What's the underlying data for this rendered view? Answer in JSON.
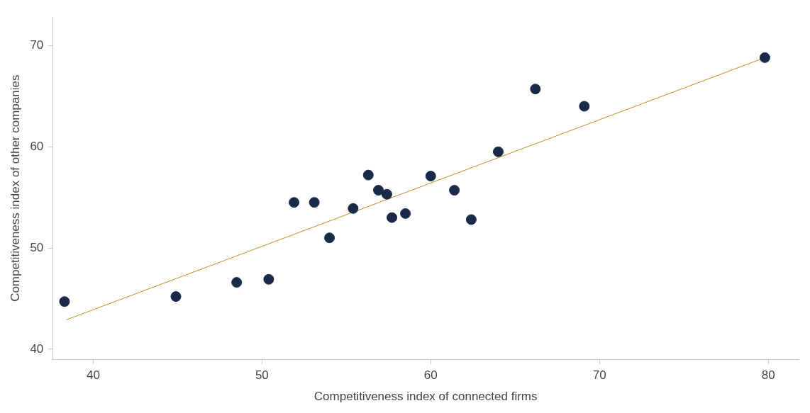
{
  "chart_data": {
    "type": "scatter",
    "xlabel": "Competitiveness index of connected firms",
    "ylabel": "Competitiveness index of other companies",
    "xlim": [
      37.6,
      81.8
    ],
    "xticks": [
      40,
      50,
      60,
      70,
      80
    ],
    "ylim": [
      39,
      72.8
    ],
    "yticks": [
      40,
      50,
      60,
      70
    ],
    "grid": false,
    "legend": false,
    "series": [
      {
        "marker": "circle",
        "color": "#1a2b4a",
        "x": [
          38.3,
          44.9,
          48.5,
          50.4,
          51.9,
          53.1,
          54.0,
          55.4,
          56.3,
          56.9,
          57.4,
          57.7,
          58.5,
          60.0,
          61.4,
          62.4,
          64.0,
          66.2,
          69.1,
          79.8
        ],
        "values": [
          44.7,
          45.2,
          46.6,
          46.9,
          54.5,
          54.5,
          51.0,
          53.9,
          57.2,
          55.7,
          55.3,
          53.0,
          53.4,
          57.1,
          55.7,
          52.8,
          59.5,
          65.7,
          64.0,
          68.8
        ]
      },
      {
        "type": "line",
        "color": "#c8891e",
        "x": [
          38.4,
          79.8
        ],
        "values": [
          42.9,
          68.8
        ]
      }
    ]
  }
}
